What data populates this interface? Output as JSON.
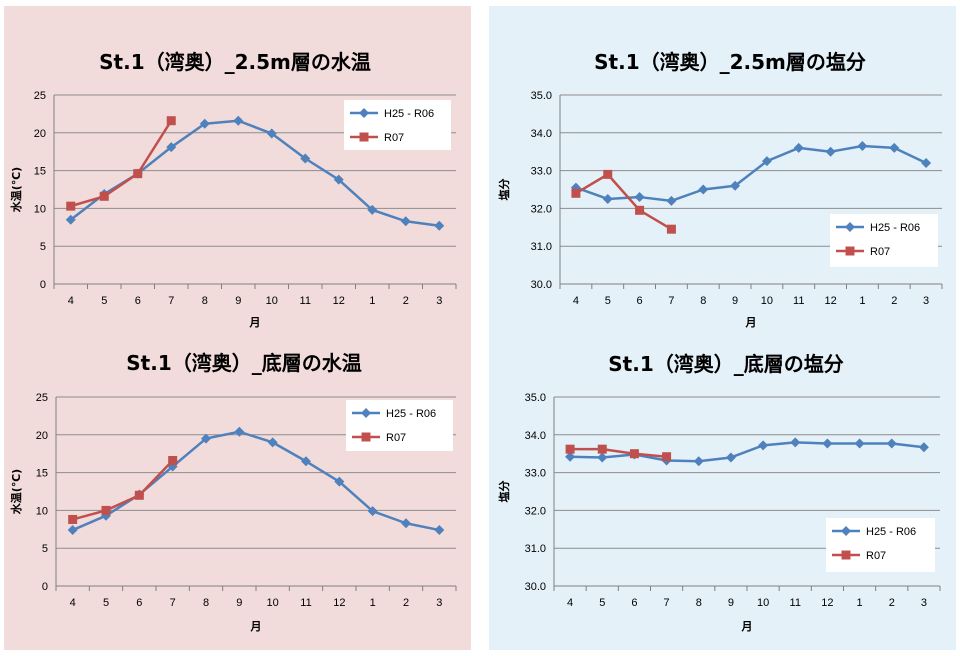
{
  "colors": {
    "panel_temp_bg": "#f2dcdb",
    "panel_sal_bg": "#e5f1f8",
    "series_hist": "#4f81bd",
    "series_current": "#c0504d",
    "grid": "#8c8c8c"
  },
  "chart_data": [
    {
      "id": "temp-top",
      "type": "line",
      "title": "St.1（湾奥）_2.5m層の水温",
      "xlabel": "月",
      "ylabel": "水温(℃)",
      "categories": [
        "4",
        "5",
        "6",
        "7",
        "8",
        "9",
        "10",
        "11",
        "12",
        "1",
        "2",
        "3"
      ],
      "ylim": [
        0,
        25
      ],
      "yticks": [
        "0",
        "5",
        "10",
        "15",
        "20",
        "25"
      ],
      "grid": true,
      "legend_position": "top-right",
      "series": [
        {
          "name": "H25 - R06",
          "color": "#4f81bd",
          "marker": "diamond",
          "values": [
            8.5,
            11.9,
            14.6,
            18.1,
            21.2,
            21.6,
            19.9,
            16.6,
            13.8,
            9.8,
            8.3,
            7.7
          ]
        },
        {
          "name": "R07",
          "color": "#c0504d",
          "marker": "square",
          "values": [
            10.3,
            11.6,
            14.6,
            21.6,
            null,
            null,
            null,
            null,
            null,
            null,
            null,
            null
          ]
        }
      ]
    },
    {
      "id": "sal-top",
      "type": "line",
      "title": "St.1（湾奥）_2.5m層の塩分",
      "xlabel": "月",
      "ylabel": "塩分",
      "categories": [
        "4",
        "5",
        "6",
        "7",
        "8",
        "9",
        "10",
        "11",
        "12",
        "1",
        "2",
        "3"
      ],
      "ylim": [
        30,
        35
      ],
      "yticks": [
        "30.0",
        "31.0",
        "32.0",
        "33.0",
        "34.0",
        "35.0"
      ],
      "grid": true,
      "legend_position": "bottom-right",
      "series": [
        {
          "name": "H25 - R06",
          "color": "#4f81bd",
          "marker": "diamond",
          "values": [
            32.55,
            32.25,
            32.3,
            32.2,
            32.5,
            32.6,
            33.25,
            33.6,
            33.5,
            33.65,
            33.6,
            33.2
          ]
        },
        {
          "name": "R07",
          "color": "#c0504d",
          "marker": "square",
          "values": [
            32.4,
            32.9,
            31.95,
            31.45,
            null,
            null,
            null,
            null,
            null,
            null,
            null,
            null
          ]
        }
      ]
    },
    {
      "id": "temp-bottom",
      "type": "line",
      "title": "St.1（湾奥）_底層の水温",
      "xlabel": "月",
      "ylabel": "水温(℃)",
      "categories": [
        "4",
        "5",
        "6",
        "7",
        "8",
        "9",
        "10",
        "11",
        "12",
        "1",
        "2",
        "3"
      ],
      "ylim": [
        0,
        25
      ],
      "yticks": [
        "0",
        "5",
        "10",
        "15",
        "20",
        "25"
      ],
      "grid": true,
      "legend_position": "top-right",
      "series": [
        {
          "name": "H25 - R06",
          "color": "#4f81bd",
          "marker": "diamond",
          "values": [
            7.4,
            9.3,
            12.1,
            15.8,
            19.5,
            20.4,
            19.0,
            16.5,
            13.8,
            9.9,
            8.3,
            7.4
          ]
        },
        {
          "name": "R07",
          "color": "#c0504d",
          "marker": "square",
          "values": [
            8.8,
            10.0,
            12.0,
            16.6,
            null,
            null,
            null,
            null,
            null,
            null,
            null,
            null
          ]
        }
      ]
    },
    {
      "id": "sal-bottom",
      "type": "line",
      "title": "St.1（湾奥）_底層の塩分",
      "xlabel": "月",
      "ylabel": "塩分",
      "categories": [
        "4",
        "5",
        "6",
        "7",
        "8",
        "9",
        "10",
        "11",
        "12",
        "1",
        "2",
        "3"
      ],
      "ylim": [
        30,
        35
      ],
      "yticks": [
        "30.0",
        "31.0",
        "32.0",
        "33.0",
        "34.0",
        "35.0"
      ],
      "grid": true,
      "legend_position": "bottom-right",
      "series": [
        {
          "name": "H25 - R06",
          "color": "#4f81bd",
          "marker": "diamond",
          "values": [
            33.42,
            33.4,
            33.48,
            33.32,
            33.3,
            33.4,
            33.72,
            33.8,
            33.77,
            33.77,
            33.77,
            33.67
          ]
        },
        {
          "name": "R07",
          "color": "#c0504d",
          "marker": "square",
          "values": [
            33.62,
            33.62,
            33.5,
            33.42,
            null,
            null,
            null,
            null,
            null,
            null,
            null,
            null
          ]
        }
      ]
    }
  ]
}
